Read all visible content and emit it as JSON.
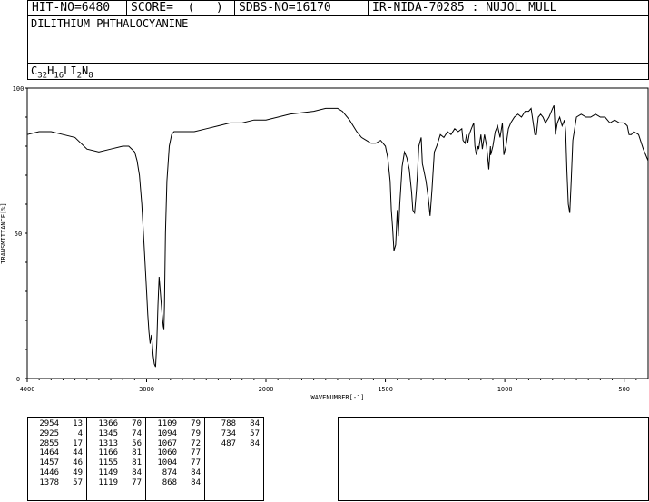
{
  "header": {
    "hit_no": "HIT-NO=6480",
    "score": "SCORE=  (   )",
    "sdbs_no": "SDBS-NO=16170",
    "ir_nida": "IR-NIDA-70285 : NUJOL MULL"
  },
  "compound": {
    "name": "DILITHIUM PHTHALOCYANINE",
    "formula_parts": [
      {
        "t": "C",
        "s": "32"
      },
      {
        "t": "H",
        "s": "16"
      },
      {
        "t": "LI",
        "s": "2"
      },
      {
        "t": "N",
        "s": "8"
      }
    ]
  },
  "chart_data": {
    "type": "line",
    "xlabel": "WAVENUMBER[-1]",
    "ylabel": "TRANSMITTANCE[%]",
    "xlim": [
      4000,
      400
    ],
    "ylim": [
      0,
      100
    ],
    "x_ticks": [
      4000,
      3000,
      2000,
      1500,
      1000,
      500
    ],
    "y_ticks": [
      0,
      50,
      100
    ],
    "series": [
      {
        "color": "#000000",
        "x": [
          4000,
          3900,
          3800,
          3700,
          3600,
          3500,
          3400,
          3300,
          3200,
          3150,
          3100,
          3080,
          3060,
          3040,
          3020,
          3000,
          2990,
          2980,
          2970,
          2960,
          2954,
          2945,
          2935,
          2925,
          2915,
          2905,
          2895,
          2885,
          2870,
          2860,
          2855,
          2850,
          2842,
          2830,
          2810,
          2790,
          2770,
          2750,
          2700,
          2600,
          2500,
          2400,
          2300,
          2200,
          2100,
          2000,
          1900,
          1800,
          1750,
          1700,
          1680,
          1650,
          1620,
          1600,
          1580,
          1560,
          1540,
          1520,
          1500,
          1490,
          1480,
          1475,
          1470,
          1464,
          1457,
          1450,
          1446,
          1440,
          1430,
          1420,
          1410,
          1400,
          1390,
          1385,
          1378,
          1370,
          1366,
          1360,
          1350,
          1345,
          1340,
          1330,
          1320,
          1313,
          1305,
          1295,
          1285,
          1270,
          1255,
          1240,
          1225,
          1210,
          1195,
          1180,
          1175,
          1166,
          1160,
          1155,
          1149,
          1140,
          1130,
          1125,
          1119,
          1112,
          1109,
          1100,
          1094,
          1085,
          1076,
          1067,
          1060,
          1059,
          1050,
          1040,
          1030,
          1020,
          1010,
          1004,
          995,
          985,
          975,
          960,
          945,
          930,
          915,
          900,
          890,
          874,
          868,
          860,
          850,
          840,
          830,
          815,
          800,
          794,
          788,
          780,
          770,
          760,
          750,
          745,
          740,
          734,
          728,
          722,
          715,
          700,
          680,
          660,
          640,
          620,
          600,
          580,
          560,
          540,
          520,
          500,
          487,
          480,
          470,
          460,
          440,
          420,
          400
        ],
        "y": [
          84,
          85,
          85,
          84,
          83,
          79,
          78,
          79,
          80,
          80,
          78,
          75,
          70,
          60,
          45,
          30,
          22,
          16,
          12,
          15,
          13,
          8,
          5,
          4,
          12,
          25,
          35,
          30,
          22,
          18,
          17,
          25,
          50,
          68,
          80,
          84,
          85,
          85,
          85,
          85,
          86,
          87,
          88,
          88,
          89,
          89,
          91,
          92,
          93,
          93,
          92,
          89,
          85,
          83,
          82,
          81,
          81,
          82,
          80,
          76,
          68,
          58,
          52,
          44,
          46,
          58,
          49,
          60,
          73,
          78,
          76,
          72,
          64,
          58,
          57,
          65,
          70,
          80,
          83,
          74,
          72,
          68,
          62,
          56,
          65,
          78,
          80,
          84,
          83,
          85,
          84,
          86,
          85,
          86,
          82,
          81,
          84,
          81,
          84,
          86,
          88,
          80,
          77,
          80,
          79,
          84,
          79,
          84,
          80,
          72,
          80,
          77,
          80,
          85,
          87,
          83,
          88,
          77,
          80,
          86,
          88,
          90,
          91,
          90,
          92,
          92,
          93,
          84,
          84,
          90,
          91,
          90,
          88,
          90,
          93,
          94,
          84,
          88,
          90,
          87,
          89,
          85,
          72,
          60,
          57,
          68,
          82,
          90,
          91,
          90,
          90,
          91,
          90,
          90,
          88,
          89,
          88,
          88,
          87,
          84,
          84,
          85,
          84,
          79,
          75
        ]
      }
    ],
    "peaks": [
      [
        "2954",
        "13"
      ],
      [
        "2925",
        "4"
      ],
      [
        "2855",
        "17"
      ],
      [
        "1464",
        "44"
      ],
      [
        "1457",
        "46"
      ],
      [
        "1446",
        "49"
      ],
      [
        "1378",
        "57"
      ],
      [
        "1366",
        "70"
      ],
      [
        "1345",
        "74"
      ],
      [
        "1313",
        "56"
      ],
      [
        "1166",
        "81"
      ],
      [
        "1155",
        "81"
      ],
      [
        "1149",
        "84"
      ],
      [
        "1119",
        "77"
      ],
      [
        "1109",
        "79"
      ],
      [
        "1094",
        "79"
      ],
      [
        "1067",
        "72"
      ],
      [
        "1060",
        "77"
      ],
      [
        "1004",
        "77"
      ],
      [
        "874",
        "84"
      ],
      [
        "868",
        "84"
      ],
      [
        "788",
        "84"
      ],
      [
        "734",
        "57"
      ],
      [
        "487",
        "84"
      ]
    ]
  }
}
